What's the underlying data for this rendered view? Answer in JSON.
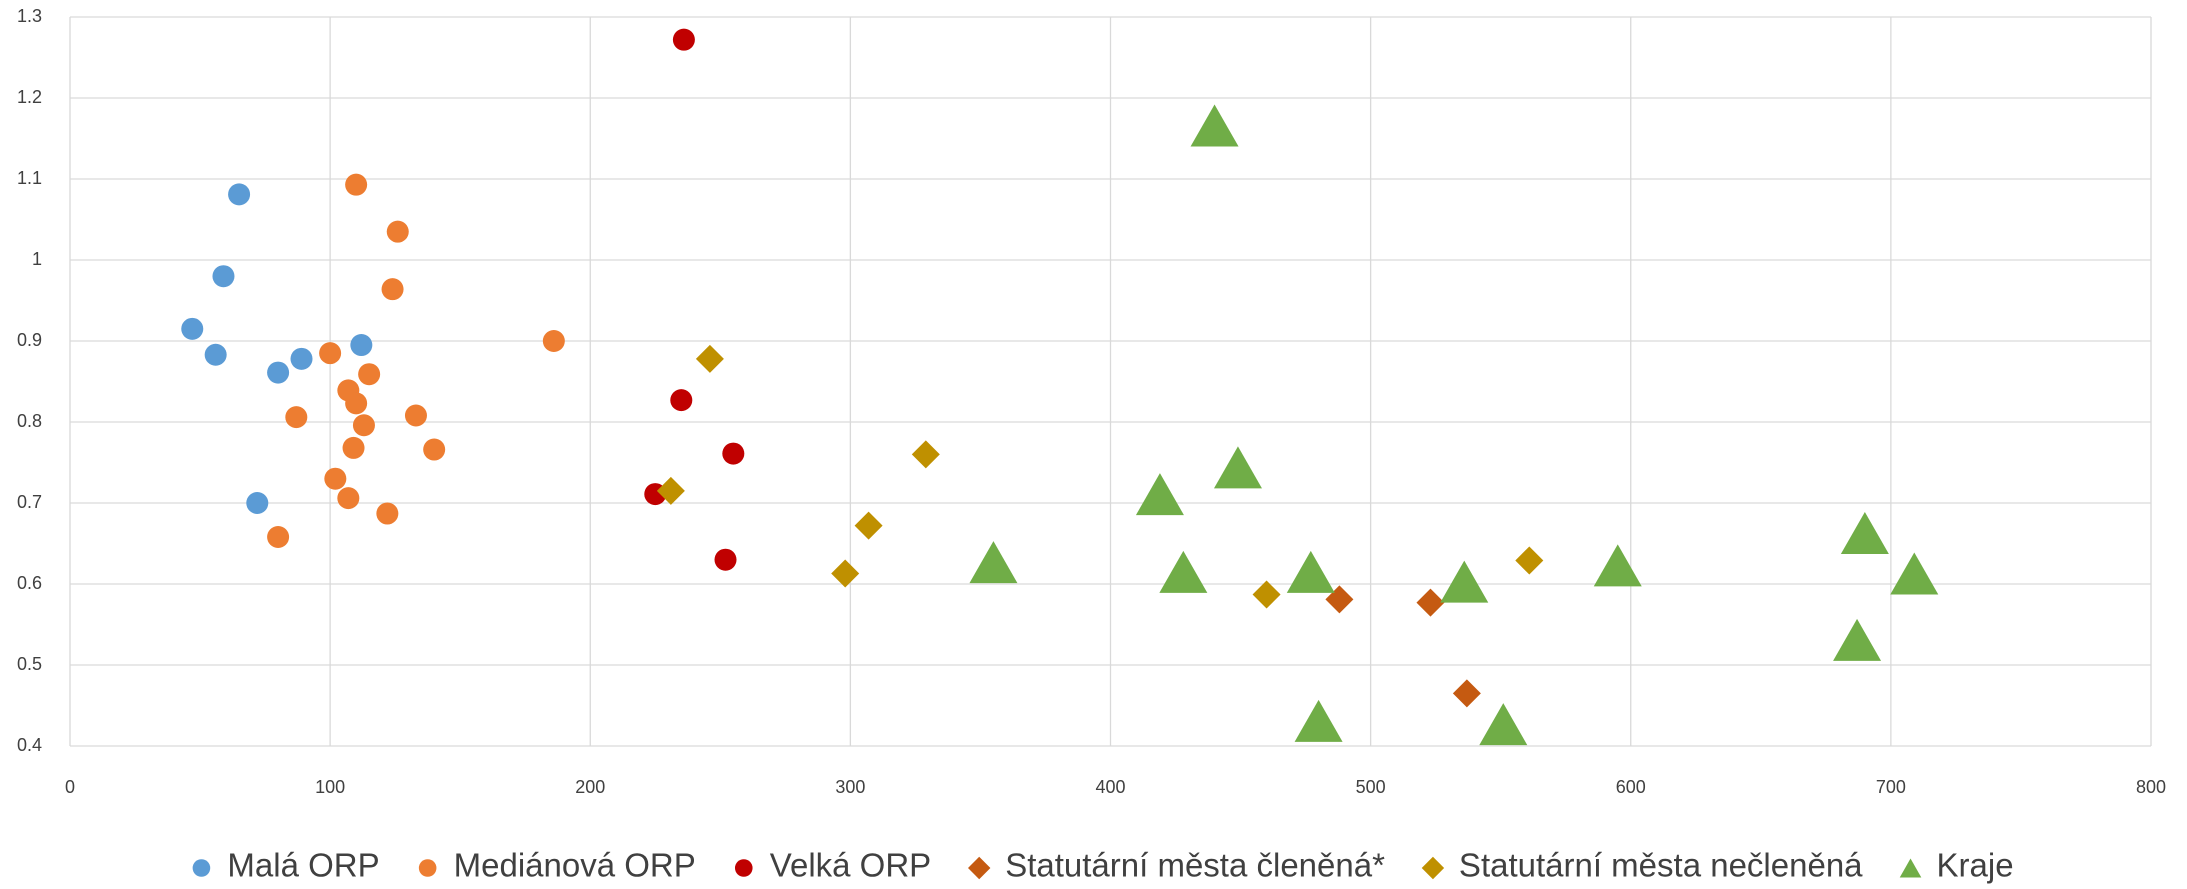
{
  "chart_data": {
    "type": "scatter",
    "xlim": [
      0,
      800
    ],
    "xticks": [
      0,
      100,
      200,
      300,
      400,
      500,
      600,
      700,
      800
    ],
    "ylim": [
      0.4,
      1.3
    ],
    "yticks": [
      0.4,
      0.5,
      0.6,
      0.7,
      0.8,
      0.9,
      1,
      1.1,
      1.2,
      1.3
    ],
    "grid": true,
    "legend": "bottom",
    "series": [
      {
        "name": "Malá ORP",
        "color": "#5b9bd5",
        "marker": "circle",
        "x": [
          65,
          59,
          47,
          56,
          80,
          89,
          112,
          72
        ],
        "values": [
          1.081,
          0.98,
          0.915,
          0.883,
          0.861,
          0.878,
          0.895,
          0.7
        ]
      },
      {
        "name": "Mediánová ORP",
        "color": "#ed7d31",
        "marker": "circle",
        "x": [
          110,
          126,
          124,
          186,
          100,
          115,
          107,
          110,
          87,
          133,
          113,
          140,
          109,
          102,
          107,
          122,
          80
        ],
        "values": [
          1.093,
          1.035,
          0.964,
          0.9,
          0.885,
          0.859,
          0.839,
          0.823,
          0.806,
          0.808,
          0.796,
          0.766,
          0.768,
          0.73,
          0.706,
          0.687,
          0.658
        ]
      },
      {
        "name": "Velká ORP",
        "color": "#c00000",
        "marker": "circle",
        "x": [
          236,
          235,
          255,
          225,
          252
        ],
        "values": [
          1.272,
          0.827,
          0.761,
          0.711,
          0.63
        ]
      },
      {
        "name": "Statutární města členěná*",
        "color": "#c55a11",
        "marker": "diamond",
        "x": [
          488,
          523,
          537
        ],
        "values": [
          0.581,
          0.577,
          0.465
        ]
      },
      {
        "name": "Statutární města nečleněná",
        "color": "#bf9000",
        "marker": "diamond",
        "x": [
          246,
          329,
          231,
          307,
          298,
          460,
          561
        ],
        "values": [
          0.878,
          0.76,
          0.715,
          0.672,
          0.613,
          0.587,
          0.629
        ]
      },
      {
        "name": "Kraje",
        "color": "#70ad47",
        "marker": "triangle",
        "x": [
          440,
          449,
          419,
          355,
          428,
          477,
          536,
          595,
          690,
          709,
          687,
          480,
          551
        ],
        "values": [
          1.166,
          0.744,
          0.711,
          0.627,
          0.615,
          0.615,
          0.603,
          0.623,
          0.663,
          0.613,
          0.531,
          0.431,
          0.427
        ]
      }
    ]
  }
}
